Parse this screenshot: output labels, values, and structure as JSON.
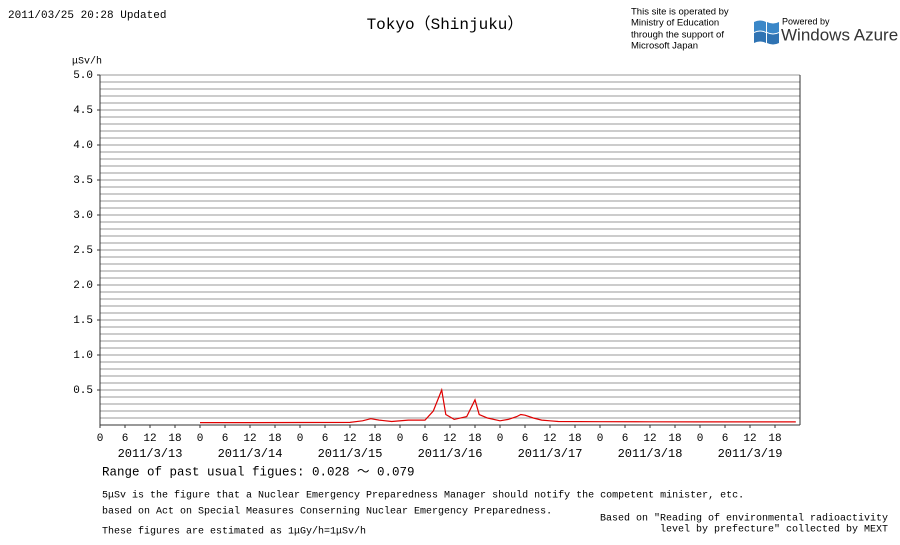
{
  "chart_data": {
    "type": "line",
    "title": "Tokyo（Shinjuku）",
    "updated": "2011/03/25 20:28 Updated",
    "operator_lines": [
      "This site is operated by",
      "Ministry of Education",
      "through the support of",
      "Microsoft Japan"
    ],
    "powered_by": "Powered by",
    "brand": "Windows Azure",
    "ylabel": "μSv/h",
    "color": "#e00000",
    "x": [
      24,
      36,
      48,
      60,
      63,
      65,
      67,
      70,
      74,
      78,
      80,
      82,
      83,
      85,
      88,
      90,
      91,
      93,
      96,
      98,
      100,
      101,
      102,
      104,
      106,
      108,
      110,
      120,
      132,
      144,
      156,
      167
    ],
    "values": [
      0.035,
      0.035,
      0.036,
      0.037,
      0.06,
      0.09,
      0.07,
      0.05,
      0.07,
      0.07,
      0.2,
      0.5,
      0.15,
      0.08,
      0.12,
      0.36,
      0.15,
      0.1,
      0.06,
      0.08,
      0.12,
      0.15,
      0.14,
      0.1,
      0.07,
      0.06,
      0.05,
      0.047,
      0.046,
      0.045,
      0.045,
      0.045
    ],
    "xlim": [
      0,
      168
    ],
    "ylim": [
      0,
      5
    ],
    "yticks": [
      {
        "value": 0.5,
        "label": "0.5"
      },
      {
        "value": 1,
        "label": "1.0"
      },
      {
        "value": 1.5,
        "label": "1.5"
      },
      {
        "value": 2,
        "label": "2.0"
      },
      {
        "value": 2.5,
        "label": "2.5"
      },
      {
        "value": 3,
        "label": "3.0"
      },
      {
        "value": 3.5,
        "label": "3.5"
      },
      {
        "value": 4,
        "label": "4.0"
      },
      {
        "value": 4.5,
        "label": "4.5"
      },
      {
        "value": 5,
        "label": "5.0"
      }
    ],
    "minor_yticks": [
      0.1,
      0.2,
      0.3,
      0.4,
      0.5,
      0.6,
      0.7,
      0.8,
      0.9,
      1,
      1.1,
      1.2,
      1.3,
      1.4,
      1.5,
      1.6,
      1.7,
      1.8,
      1.9,
      2,
      2.1,
      2.2,
      2.3,
      2.4,
      2.5,
      2.6,
      2.7,
      2.8,
      2.9,
      3,
      3.1,
      3.2,
      3.3,
      3.4,
      3.5,
      3.6,
      3.7,
      3.8,
      3.9,
      4,
      4.1,
      4.2,
      4.3,
      4.4,
      4.5,
      4.6,
      4.7,
      4.8,
      4.9,
      5
    ],
    "grid": true,
    "xticks": [
      {
        "value": 0,
        "label": "0"
      },
      {
        "value": 6,
        "label": "6"
      },
      {
        "value": 12,
        "label": "12"
      },
      {
        "value": 18,
        "label": "18"
      },
      {
        "value": 24,
        "label": "0"
      },
      {
        "value": 30,
        "label": "6"
      },
      {
        "value": 36,
        "label": "12"
      },
      {
        "value": 42,
        "label": "18"
      },
      {
        "value": 48,
        "label": "0"
      },
      {
        "value": 54,
        "label": "6"
      },
      {
        "value": 60,
        "label": "12"
      },
      {
        "value": 66,
        "label": "18"
      },
      {
        "value": 72,
        "label": "0"
      },
      {
        "value": 78,
        "label": "6"
      },
      {
        "value": 84,
        "label": "12"
      },
      {
        "value": 90,
        "label": "18"
      },
      {
        "value": 96,
        "label": "0"
      },
      {
        "value": 102,
        "label": "6"
      },
      {
        "value": 108,
        "label": "12"
      },
      {
        "value": 114,
        "label": "18"
      },
      {
        "value": 120,
        "label": "0"
      },
      {
        "value": 126,
        "label": "6"
      },
      {
        "value": 132,
        "label": "12"
      },
      {
        "value": 138,
        "label": "18"
      },
      {
        "value": 144,
        "label": "0"
      },
      {
        "value": 150,
        "label": "6"
      },
      {
        "value": 156,
        "label": "12"
      },
      {
        "value": 162,
        "label": "18"
      }
    ],
    "date_ticks": [
      {
        "value": 12,
        "label": "2011/3/13"
      },
      {
        "value": 36,
        "label": "2011/3/14"
      },
      {
        "value": 60,
        "label": "2011/3/15"
      },
      {
        "value": 84,
        "label": "2011/3/16"
      },
      {
        "value": 108,
        "label": "2011/3/17"
      },
      {
        "value": 132,
        "label": "2011/3/18"
      },
      {
        "value": 156,
        "label": "2011/3/19"
      }
    ],
    "range_note": "Range of past usual figues: 0.028 ～ 0.079",
    "notes": [
      "5μSv is the figure that a Nuclear Emergency Preparedness Manager should notify the competent minister, etc.",
      "based on Act on Special Measures Conserning Nuclear Emergency Preparedness.",
      "These figures are estimated as 1μGy/h=1μSv/h"
    ],
    "source_lines": [
      "Based on \"Reading of environmental radioactivity",
      "level by prefecture\" collected by MEXT"
    ]
  }
}
